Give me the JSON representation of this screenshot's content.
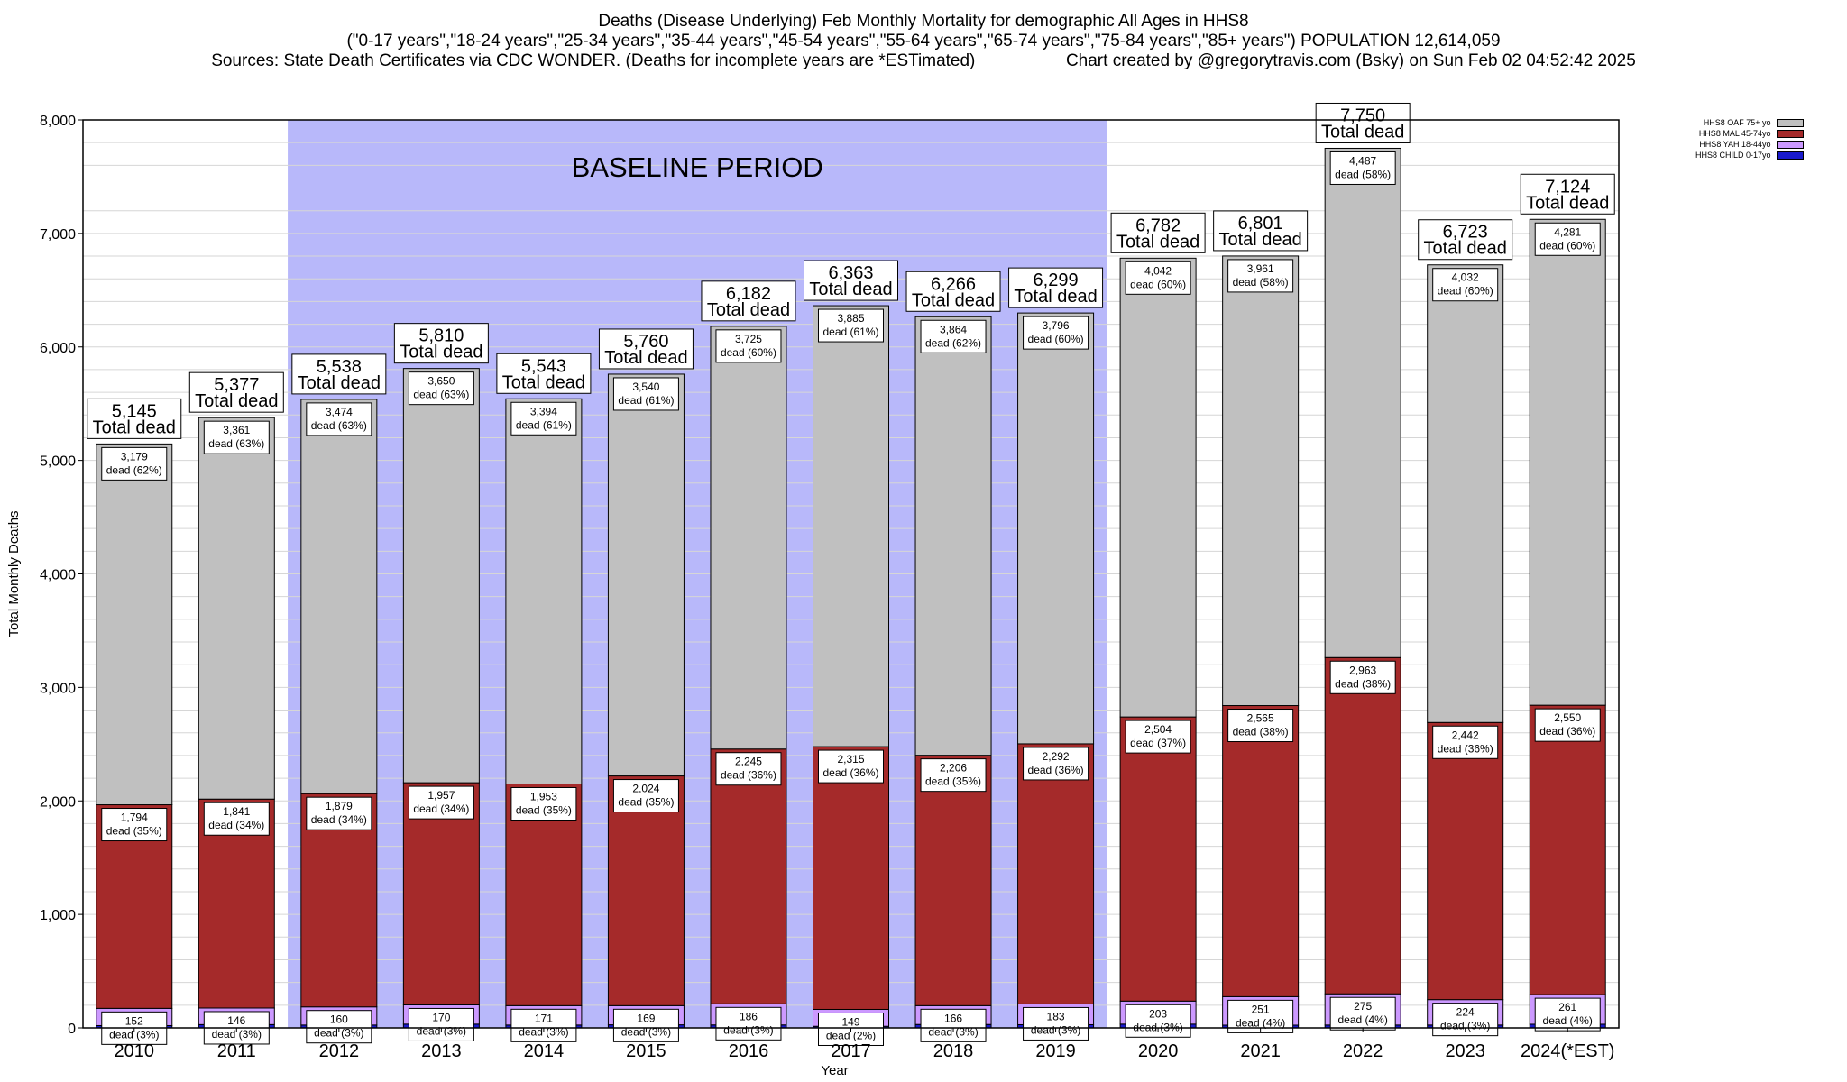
{
  "header": {
    "line1": "Deaths (Disease Underlying) Feb Monthly Mortality for demographic All Ages in HHS8",
    "line2": "(\"0-17 years\",\"18-24 years\",\"25-34 years\",\"35-44 years\",\"45-54 years\",\"55-64 years\",\"65-74 years\",\"75-84 years\",\"85+ years\") POPULATION 12,614,059",
    "line3_left": "Sources: State Death Certificates via CDC WONDER. (Deaths for incomplete years are *ESTimated)",
    "line3_right": "Chart created by @gregorytravis.com (Bsky) on Sun Feb 02 04:52:42 2025"
  },
  "legend": [
    {
      "label": "HHS8 OAF 75+ yo",
      "color": "#c0c0c0"
    },
    {
      "label": "HHS8 MAL 45-74yo",
      "color": "#a52a2a"
    },
    {
      "label": "HHS8 YAH 18-44yo",
      "color": "#cc99ff"
    },
    {
      "label": "HHS8 CHILD 0-17yo",
      "color": "#1a1acc"
    }
  ],
  "chart_data": {
    "type": "bar",
    "stacked": true,
    "xlabel": "Year",
    "ylabel": "Total Monthly Deaths",
    "ylim": [
      0,
      8000
    ],
    "yticks": [
      0,
      1000,
      2000,
      3000,
      4000,
      5000,
      6000,
      7000,
      8000
    ],
    "ytick_labels": [
      "0",
      "1,000",
      "2,000",
      "3,000",
      "4,000",
      "5,000",
      "6,000",
      "7,000",
      "8,000"
    ],
    "grid": true,
    "legend_position": "top-right",
    "baseline": {
      "label": "BASELINE PERIOD",
      "from": "2012",
      "to": "2019",
      "color": "#b8b8fa"
    },
    "categories": [
      "2010",
      "2011",
      "2012",
      "2013",
      "2014",
      "2015",
      "2016",
      "2017",
      "2018",
      "2019",
      "2020",
      "2021",
      "2022",
      "2023",
      "2024(*EST)"
    ],
    "totals": [
      5145,
      5377,
      5538,
      5810,
      5543,
      5760,
      6182,
      6363,
      6266,
      6299,
      6782,
      6801,
      7750,
      6723,
      7124
    ],
    "total_labels": [
      "5,145",
      "5,377",
      "5,538",
      "5,810",
      "5,543",
      "5,760",
      "6,182",
      "6,363",
      "6,266",
      "6,299",
      "6,782",
      "6,801",
      "7,750",
      "6,723",
      "7,124"
    ],
    "total_suffix": "Total dead",
    "series": [
      {
        "name": "HHS8 CHILD 0-17yo",
        "color": "#1a1acc",
        "values": [
          20,
          29,
          25,
          33,
          25,
          27,
          26,
          14,
          30,
          28,
          33,
          24,
          25,
          25,
          32
        ]
      },
      {
        "name": "HHS8 YAH 18-44yo",
        "color": "#cc99ff",
        "values": [
          152,
          146,
          160,
          170,
          171,
          169,
          186,
          149,
          166,
          183,
          203,
          251,
          275,
          224,
          261
        ],
        "labels": [
          "152",
          "146",
          "160",
          "170",
          "171",
          "169",
          "186",
          "149",
          "166",
          "183",
          "203",
          "251",
          "275",
          "224",
          "261"
        ],
        "pct_labels": [
          "dead (3%)",
          "dead (3%)",
          "dead (3%)",
          "dead (3%)",
          "dead (3%)",
          "dead (3%)",
          "dead (3%)",
          "dead (2%)",
          "dead (3%)",
          "dead (3%)",
          "dead (3%)",
          "dead (4%)",
          "dead (4%)",
          "dead (3%)",
          "dead (4%)"
        ]
      },
      {
        "name": "HHS8 MAL 45-74yo",
        "color": "#a52a2a",
        "values": [
          1794,
          1841,
          1879,
          1957,
          1953,
          2024,
          2245,
          2315,
          2206,
          2292,
          2504,
          2565,
          2963,
          2442,
          2550
        ],
        "labels": [
          "1,794",
          "1,841",
          "1,879",
          "1,957",
          "1,953",
          "2,024",
          "2,245",
          "2,315",
          "2,206",
          "2,292",
          "2,504",
          "2,565",
          "2,963",
          "2,442",
          "2,550"
        ],
        "pct_labels": [
          "dead (35%)",
          "dead (34%)",
          "dead (34%)",
          "dead (34%)",
          "dead (35%)",
          "dead (35%)",
          "dead (36%)",
          "dead (36%)",
          "dead (35%)",
          "dead (36%)",
          "dead (37%)",
          "dead (38%)",
          "dead (38%)",
          "dead (36%)",
          "dead (36%)"
        ]
      },
      {
        "name": "HHS8 OAF 75+ yo",
        "color": "#c0c0c0",
        "values": [
          3179,
          3361,
          3474,
          3650,
          3394,
          3540,
          3725,
          3885,
          3864,
          3796,
          4042,
          3961,
          4487,
          4032,
          4281
        ],
        "labels": [
          "3,179",
          "3,361",
          "3,474",
          "3,650",
          "3,394",
          "3,540",
          "3,725",
          "3,885",
          "3,864",
          "3,796",
          "4,042",
          "3,961",
          "4,487",
          "4,032",
          "4,281"
        ],
        "pct_labels": [
          "dead (62%)",
          "dead (63%)",
          "dead (63%)",
          "dead (63%)",
          "dead (61%)",
          "dead (61%)",
          "dead (60%)",
          "dead (61%)",
          "dead (62%)",
          "dead (60%)",
          "dead (60%)",
          "dead (58%)",
          "dead (58%)",
          "dead (60%)",
          "dead (60%)"
        ]
      }
    ]
  }
}
